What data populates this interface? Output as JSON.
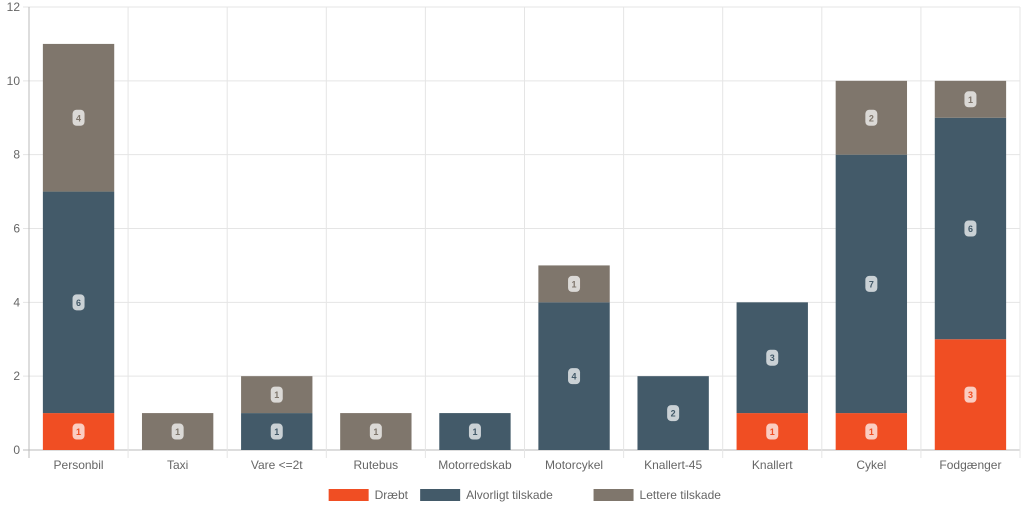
{
  "chart_data": {
    "type": "bar",
    "stacked": true,
    "title": "",
    "xlabel": "",
    "ylabel": "",
    "ylim": [
      0,
      12
    ],
    "yticks": [
      0,
      2,
      4,
      6,
      8,
      10,
      12
    ],
    "grid": true,
    "legend_position": "bottom",
    "categories": [
      "Personbil",
      "Taxi",
      "Vare <=2t",
      "Rutebus",
      "Motorredskab",
      "Motorcykel",
      "Knallert-45",
      "Knallert",
      "Cykel",
      "Fodgænger"
    ],
    "series": [
      {
        "name": "Dræbt",
        "color": "#f04e23",
        "values": [
          1,
          0,
          0,
          0,
          0,
          0,
          0,
          1,
          1,
          3
        ]
      },
      {
        "name": "Alvorligt tilskade",
        "color": "#435a69",
        "values": [
          6,
          0,
          1,
          0,
          1,
          4,
          2,
          3,
          7,
          6
        ]
      },
      {
        "name": "Lettere tilskade",
        "color": "#7f766c",
        "values": [
          4,
          1,
          1,
          1,
          0,
          1,
          0,
          0,
          2,
          1
        ]
      }
    ]
  }
}
